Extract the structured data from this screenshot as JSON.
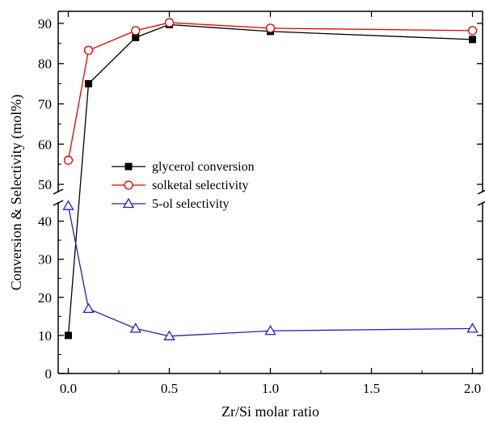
{
  "chart_data": {
    "type": "line",
    "title": "",
    "xlabel": "Zr/Si molar ratio",
    "ylabel": "Conversion & Selectivity (mol%)",
    "xlim": [
      -0.05,
      2.05
    ],
    "x_ticks": [
      "0.0",
      "0.5",
      "1.0",
      "1.5",
      "2.0"
    ],
    "y_axis_break": true,
    "ylim_lower": [
      0,
      45
    ],
    "ylim_upper": [
      48,
      93
    ],
    "y_ticks_lower": [
      "0",
      "10",
      "20",
      "30",
      "40"
    ],
    "y_ticks_upper": [
      "50",
      "60",
      "70",
      "80",
      "90"
    ],
    "grid": false,
    "legend_position": "center-left",
    "x": [
      0,
      0.1,
      0.333,
      0.5,
      1.0,
      2.0
    ],
    "series": [
      {
        "name": "glycerol conversion",
        "marker": "filled-square",
        "color": "#000000",
        "values": [
          10,
          75,
          86.5,
          89.7,
          88,
          86
        ]
      },
      {
        "name": "solketal selectivity",
        "marker": "open-circle",
        "color": "#e00000",
        "values": [
          56,
          83.3,
          88.2,
          90.2,
          88.8,
          88.2
        ]
      },
      {
        "name": "5-ol selectivity",
        "marker": "open-triangle",
        "color": "#2020c0",
        "values": [
          44,
          17,
          11.8,
          9.8,
          11.2,
          11.8
        ]
      }
    ]
  }
}
